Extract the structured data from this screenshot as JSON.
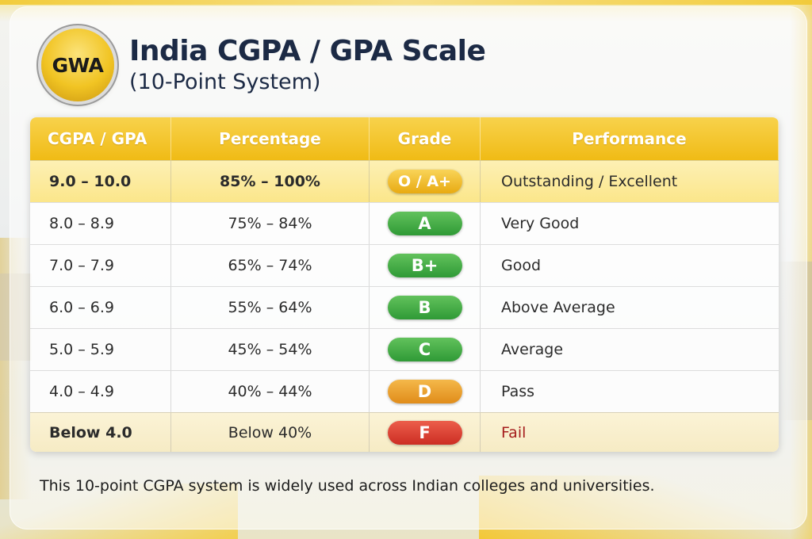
{
  "header": {
    "logo_text": "GWA",
    "title": "India CGPA / GPA Scale",
    "subtitle": "(10-Point System)"
  },
  "table": {
    "columns": [
      "CGPA / GPA",
      "Percentage",
      "Grade",
      "Performance"
    ],
    "rows": [
      {
        "cgpa": "9.0 – 10.0",
        "percentage": "85% – 100%",
        "grade": "O / A+",
        "performance": "Outstanding / Excellent"
      },
      {
        "cgpa": "8.0 – 8.9",
        "percentage": "75% – 84%",
        "grade": "A",
        "performance": "Very Good"
      },
      {
        "cgpa": "7.0 – 7.9",
        "percentage": "65% – 74%",
        "grade": "B+",
        "performance": "Good"
      },
      {
        "cgpa": "6.0 – 6.9",
        "percentage": "55% – 64%",
        "grade": "B",
        "performance": "Above Average"
      },
      {
        "cgpa": "5.0 – 5.9",
        "percentage": "45% – 54%",
        "grade": "C",
        "performance": "Average"
      },
      {
        "cgpa": "4.0 – 4.9",
        "percentage": "40% – 44%",
        "grade": "D",
        "performance": "Pass"
      },
      {
        "cgpa": "Below 4.0",
        "percentage": "Below 40%",
        "grade": "F",
        "performance": "Fail"
      }
    ]
  },
  "colors": {
    "header_yellow": "#f0bb15",
    "grade_gold": "#e8aa12",
    "grade_green": "#2f9a36",
    "grade_orange": "#e08c1a",
    "grade_red": "#cc2d23",
    "fail_text": "#a51d1d",
    "title_navy": "#1c2a45"
  },
  "footnote": "This 10-point CGPA system is widely used across Indian colleges and universities."
}
